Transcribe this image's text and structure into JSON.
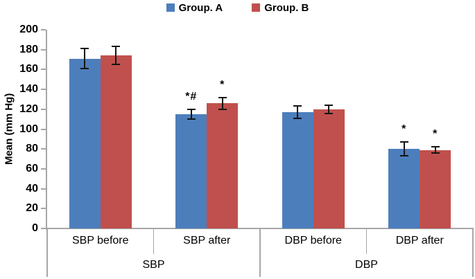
{
  "legend": {
    "items": [
      {
        "label": "Group. A",
        "color": "#4D7EBC"
      },
      {
        "label": "Group. B",
        "color": "#C0504D"
      }
    ]
  },
  "chart_data": {
    "type": "bar",
    "title": "",
    "xlabel": "",
    "ylabel": "Mean (mm Hg)",
    "ylim": [
      0,
      200
    ],
    "yticks": [
      0,
      20,
      40,
      60,
      80,
      100,
      120,
      140,
      160,
      180,
      200
    ],
    "grid": false,
    "legend_position": "top-center",
    "categories": [
      "SBP before",
      "SBP after",
      "DBP before",
      "DBP after"
    ],
    "category_groups": [
      {
        "label": "SBP",
        "span": 2
      },
      {
        "label": "DBP",
        "span": 2
      }
    ],
    "series": [
      {
        "name": "Group. A",
        "color": "#4D7EBC",
        "values": [
          171,
          115,
          117,
          80
        ],
        "error_bars": [
          10,
          5,
          6,
          7
        ],
        "annotations": [
          "",
          "*#",
          "",
          "*"
        ]
      },
      {
        "name": "Group. B",
        "color": "#C0504D",
        "values": [
          174,
          126,
          120,
          79
        ],
        "error_bars": [
          9,
          6,
          4,
          3
        ],
        "annotations": [
          "",
          "*",
          "",
          "*"
        ]
      }
    ],
    "axis_color": "#A6A6A6",
    "error_bar_color": "#141414"
  }
}
